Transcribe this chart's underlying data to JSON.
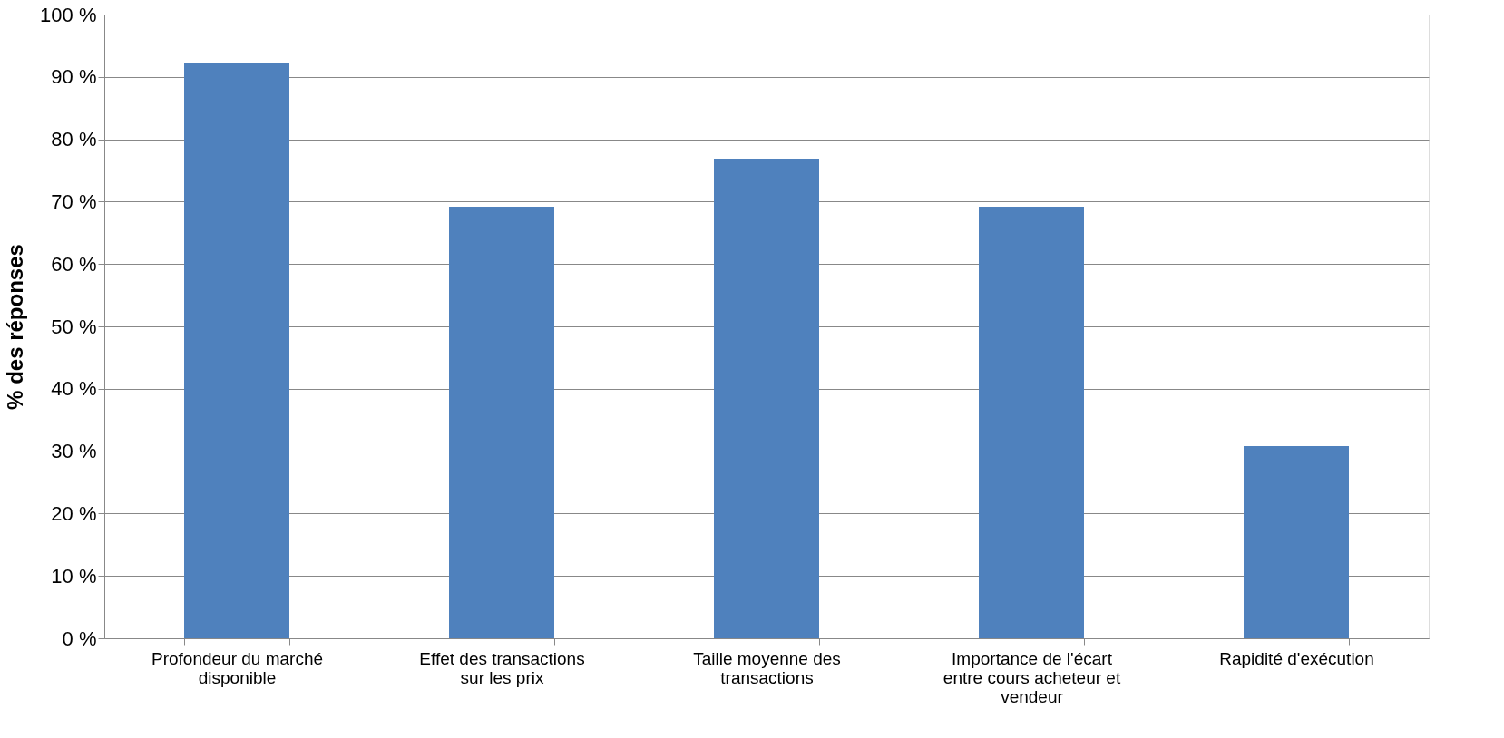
{
  "chart_data": {
    "type": "bar",
    "ylabel": "% des réponses",
    "categories": [
      "Profondeur du marché disponible",
      "Effet des transactions sur les prix",
      "Taille moyenne des transactions",
      "Importance de l'écart entre cours acheteur et vendeur",
      "Rapidité d'exécution"
    ],
    "values": [
      92.3,
      69.2,
      76.9,
      69.2,
      30.8
    ],
    "color": "#4f81bd",
    "ylim": [
      0,
      100
    ],
    "yticks": [
      {
        "value": 0,
        "label": "0 %"
      },
      {
        "value": 10,
        "label": "10 %"
      },
      {
        "value": 20,
        "label": "20 %"
      },
      {
        "value": 30,
        "label": "30 %"
      },
      {
        "value": 40,
        "label": "40 %"
      },
      {
        "value": 50,
        "label": "50 %"
      },
      {
        "value": 60,
        "label": "60 %"
      },
      {
        "value": 70,
        "label": "70 %"
      },
      {
        "value": 80,
        "label": "80 %"
      },
      {
        "value": 90,
        "label": "90 %"
      },
      {
        "value": 100,
        "label": "100 %"
      }
    ],
    "grid": "y"
  }
}
